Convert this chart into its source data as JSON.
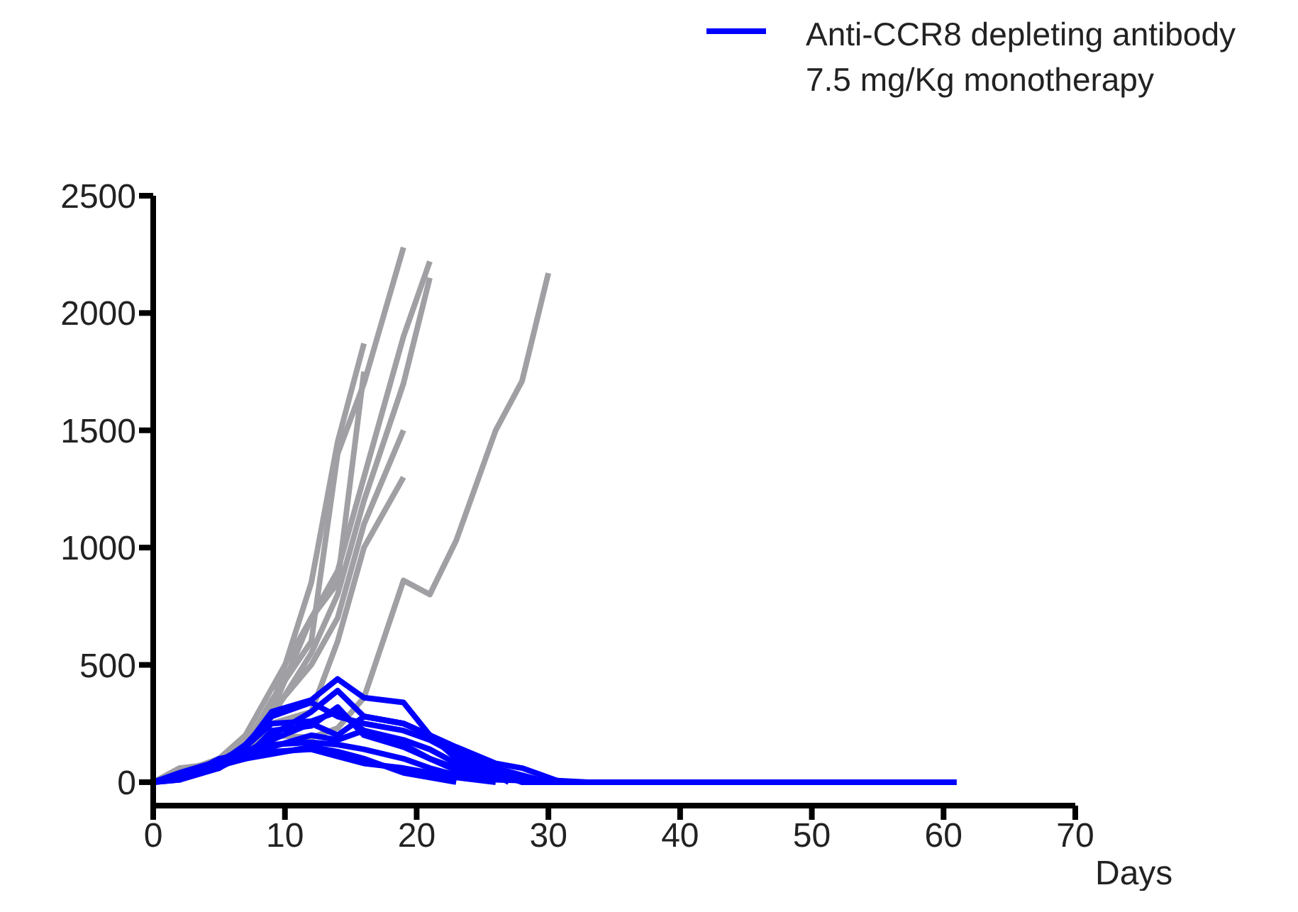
{
  "chart_data": {
    "type": "line",
    "xlabel": "Days",
    "xlim": [
      0,
      70
    ],
    "xticks": [
      0,
      10,
      20,
      30,
      40,
      50,
      60,
      70
    ],
    "ylim": [
      -100,
      2500
    ],
    "yticks": [
      0,
      500,
      1000,
      1500,
      2000,
      2500
    ],
    "grid": false,
    "legend": "top right",
    "marker": "none",
    "line_style": "solid",
    "series": [
      {
        "color": "#a0a0a4",
        "x": [
          0,
          2,
          5,
          7,
          9,
          12,
          14,
          16,
          19
        ],
        "values": [
          0,
          60,
          80,
          150,
          350,
          600,
          1400,
          1700,
          2280
        ]
      },
      {
        "color": "#a0a0a4",
        "x": [
          0,
          2,
          5,
          7,
          9,
          12,
          14,
          16,
          19,
          21
        ],
        "values": [
          0,
          50,
          70,
          170,
          300,
          700,
          900,
          1300,
          1900,
          2220
        ]
      },
      {
        "color": "#a0a0a4",
        "x": [
          0,
          2,
          5,
          7,
          9,
          12,
          14,
          16,
          19,
          21
        ],
        "values": [
          0,
          40,
          90,
          160,
          280,
          550,
          800,
          1200,
          1700,
          2150
        ]
      },
      {
        "color": "#a0a0a4",
        "x": [
          0,
          2,
          5,
          7,
          9,
          12,
          14,
          16
        ],
        "values": [
          0,
          30,
          70,
          150,
          320,
          850,
          1450,
          1870
        ]
      },
      {
        "color": "#a0a0a4",
        "x": [
          0,
          2,
          5,
          7,
          9,
          12,
          14,
          16,
          19
        ],
        "values": [
          0,
          50,
          90,
          180,
          300,
          500,
          700,
          1100,
          1500
        ]
      },
      {
        "color": "#a0a0a4",
        "x": [
          0,
          2,
          5,
          7,
          9,
          12,
          14,
          16,
          19,
          21,
          23,
          26,
          28,
          30
        ],
        "values": [
          0,
          40,
          80,
          130,
          200,
          190,
          230,
          360,
          860,
          800,
          1030,
          1500,
          1710,
          2170
        ]
      },
      {
        "color": "#a0a0a4",
        "x": [
          0,
          2,
          5,
          7,
          9,
          12,
          14,
          16
        ],
        "values": [
          0,
          40,
          100,
          200,
          400,
          700,
          850,
          1750
        ]
      },
      {
        "color": "#a0a0a4",
        "x": [
          0,
          2,
          5,
          7,
          9,
          12,
          14,
          16,
          19
        ],
        "values": [
          0,
          30,
          60,
          140,
          250,
          300,
          600,
          1000,
          1300
        ]
      },
      {
        "name": "Anti-CCR8 depleting antibody 7.5 mg/Kg monotherapy",
        "color": "#0000ff",
        "x": [
          0,
          2,
          5,
          7,
          9,
          12,
          14,
          16,
          19,
          21,
          23,
          26,
          28,
          30,
          61
        ],
        "values": [
          0,
          20,
          60,
          150,
          300,
          350,
          440,
          360,
          340,
          200,
          100,
          40,
          0,
          0,
          0
        ]
      },
      {
        "color": "#0000ff",
        "x": [
          0,
          2,
          5,
          7,
          9,
          12,
          14,
          16,
          19,
          21,
          23,
          26,
          28,
          30
        ],
        "values": [
          0,
          30,
          80,
          160,
          280,
          340,
          280,
          250,
          220,
          180,
          120,
          60,
          30,
          0
        ]
      },
      {
        "color": "#0000ff",
        "x": [
          0,
          2,
          5,
          7,
          9,
          12,
          14,
          16,
          19,
          21,
          23,
          26,
          28,
          31
        ],
        "values": [
          0,
          10,
          100,
          120,
          200,
          300,
          390,
          280,
          250,
          200,
          150,
          80,
          60,
          0
        ]
      },
      {
        "color": "#0000ff",
        "x": [
          0,
          2,
          5,
          7,
          9,
          12,
          14,
          16,
          19,
          21,
          23,
          26,
          27
        ],
        "values": [
          0,
          40,
          90,
          150,
          250,
          260,
          300,
          220,
          180,
          140,
          80,
          30,
          0
        ]
      },
      {
        "color": "#0000ff",
        "x": [
          0,
          2,
          5,
          7,
          9,
          12,
          14,
          16,
          19,
          21,
          23,
          26,
          28
        ],
        "values": [
          0,
          20,
          70,
          130,
          180,
          250,
          200,
          280,
          250,
          200,
          140,
          60,
          0
        ]
      },
      {
        "color": "#0000ff",
        "x": [
          0,
          2,
          5,
          7,
          9,
          12,
          14,
          16,
          19,
          21,
          23,
          26,
          29
        ],
        "values": [
          0,
          30,
          80,
          110,
          150,
          200,
          180,
          220,
          160,
          100,
          60,
          20,
          0
        ]
      },
      {
        "color": "#0000ff",
        "x": [
          0,
          2,
          5,
          7,
          9,
          12,
          14,
          16,
          19,
          21,
          23,
          26
        ],
        "values": [
          0,
          20,
          90,
          120,
          130,
          140,
          110,
          80,
          60,
          40,
          20,
          0
        ]
      },
      {
        "color": "#0000ff",
        "x": [
          0,
          2,
          5,
          7,
          9,
          12,
          14,
          16,
          19,
          21,
          23
        ],
        "values": [
          0,
          30,
          80,
          100,
          120,
          150,
          130,
          100,
          40,
          20,
          0
        ]
      },
      {
        "color": "#0000ff",
        "x": [
          0,
          2,
          5,
          7,
          9,
          12,
          14,
          16,
          19,
          21,
          23,
          26,
          32
        ],
        "values": [
          0,
          10,
          60,
          120,
          160,
          170,
          160,
          140,
          100,
          60,
          30,
          10,
          0
        ]
      },
      {
        "color": "#0000ff",
        "x": [
          0,
          2,
          5,
          7,
          9,
          12,
          14,
          16,
          19,
          21,
          23,
          26,
          33
        ],
        "values": [
          0,
          20,
          70,
          100,
          220,
          240,
          320,
          200,
          150,
          100,
          50,
          20,
          0
        ]
      }
    ]
  }
}
